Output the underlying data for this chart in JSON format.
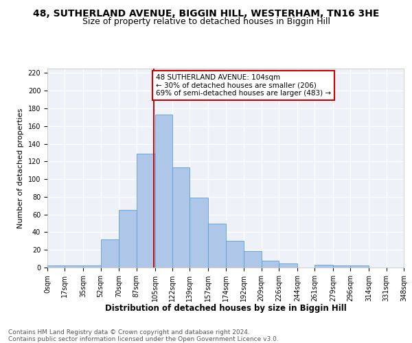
{
  "title_main": "48, SUTHERLAND AVENUE, BIGGIN HILL, WESTERHAM, TN16 3HE",
  "title_sub": "Size of property relative to detached houses in Biggin Hill",
  "xlabel": "Distribution of detached houses by size in Biggin Hill",
  "ylabel": "Number of detached properties",
  "bin_edges": [
    0,
    17,
    35,
    52,
    70,
    87,
    105,
    122,
    139,
    157,
    174,
    192,
    209,
    226,
    244,
    261,
    279,
    296,
    314,
    331,
    348
  ],
  "bin_labels": [
    "0sqm",
    "17sqm",
    "35sqm",
    "52sqm",
    "70sqm",
    "87sqm",
    "105sqm",
    "122sqm",
    "139sqm",
    "157sqm",
    "174sqm",
    "192sqm",
    "209sqm",
    "226sqm",
    "244sqm",
    "261sqm",
    "279sqm",
    "296sqm",
    "314sqm",
    "331sqm",
    "348sqm"
  ],
  "bar_heights": [
    2,
    2,
    2,
    32,
    65,
    129,
    173,
    113,
    79,
    50,
    30,
    19,
    8,
    5,
    0,
    3,
    2,
    2,
    0,
    0
  ],
  "bar_color": "#aec6e8",
  "bar_edge_color": "#5a9fd4",
  "property_size": 104,
  "red_line_color": "#cc0000",
  "annotation_text": "48 SUTHERLAND AVENUE: 104sqm\n← 30% of detached houses are smaller (206)\n69% of semi-detached houses are larger (483) →",
  "annotation_box_color": "white",
  "annotation_box_edge_color": "#cc0000",
  "ylim": [
    0,
    225
  ],
  "yticks": [
    0,
    20,
    40,
    60,
    80,
    100,
    120,
    140,
    160,
    180,
    200,
    220
  ],
  "footer_text": "Contains HM Land Registry data © Crown copyright and database right 2024.\nContains public sector information licensed under the Open Government Licence v3.0.",
  "background_color": "#eef2f8",
  "grid_color": "#ffffff",
  "title_main_fontsize": 10,
  "title_sub_fontsize": 9,
  "xlabel_fontsize": 8.5,
  "ylabel_fontsize": 8,
  "tick_fontsize": 7,
  "footer_fontsize": 6.5,
  "annot_fontsize": 7.5
}
